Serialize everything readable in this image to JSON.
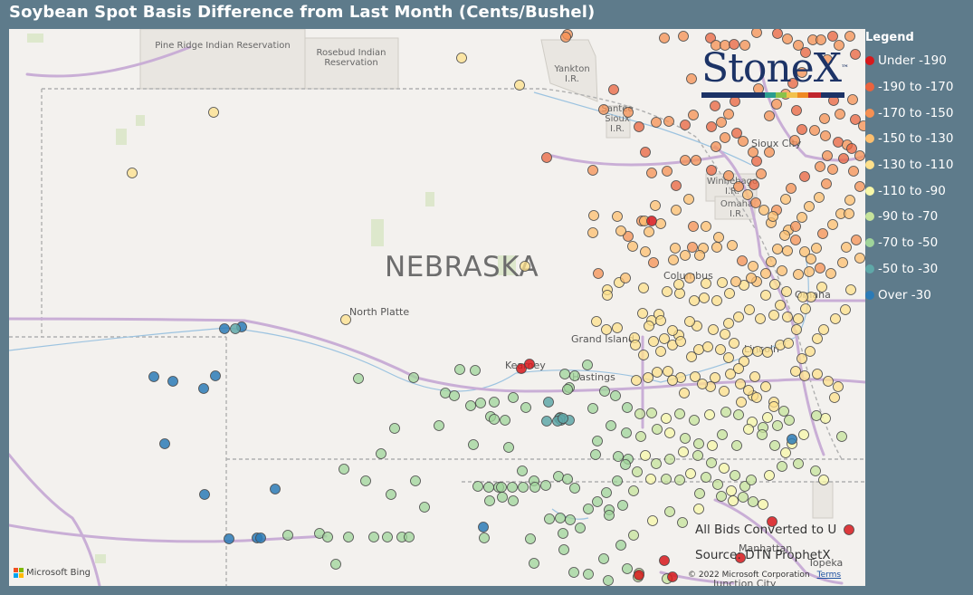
{
  "title": "Soybean Spot Basis Difference from Last Month (Cents/Bushel)",
  "legend": {
    "title": "Legend",
    "items": [
      {
        "label": "Under -190",
        "color": "#d7191c"
      },
      {
        "label": "-190 to -170",
        "color": "#ea633e"
      },
      {
        "label": "-170 to -150",
        "color": "#f59053"
      },
      {
        "label": "-150 to -130",
        "color": "#fdbf6f"
      },
      {
        "label": "-130 to -110",
        "color": "#fee08b"
      },
      {
        "label": "-110 to -90",
        "color": "#f7f7a8"
      },
      {
        "label": "-90 to -70",
        "color": "#c5e39b"
      },
      {
        "label": "-70 to -50",
        "color": "#9fd49a"
      },
      {
        "label": "-50 to -30",
        "color": "#5fa8a8"
      },
      {
        "label": "Over -30",
        "color": "#2c7bb6"
      }
    ]
  },
  "map": {
    "state_label": "NEBRASKA",
    "cities": [
      "North Platte",
      "Grand Island",
      "Columbus",
      "Omaha",
      "Lincoln",
      "Kearney",
      "Hastings",
      "Sioux City",
      "Manhattan",
      "Topeka",
      "Junction City"
    ],
    "reservations": [
      "Pine Ridge Indian Reservation",
      "Rosebud Indian Reservation",
      "Yankton I.R.",
      "Santee Sioux I.R.",
      "Winnebago I.R.",
      "Omaha I.R."
    ]
  },
  "notes": {
    "converted": "All Bids Converted to U",
    "source": "Source: DTN ProphetX"
  },
  "attribution": {
    "bing": "Microsoft Bing",
    "copyright": "© 2022 Microsoft Corporation",
    "terms": "Terms"
  },
  "logo": {
    "text": "StoneX",
    "tm": "™"
  }
}
